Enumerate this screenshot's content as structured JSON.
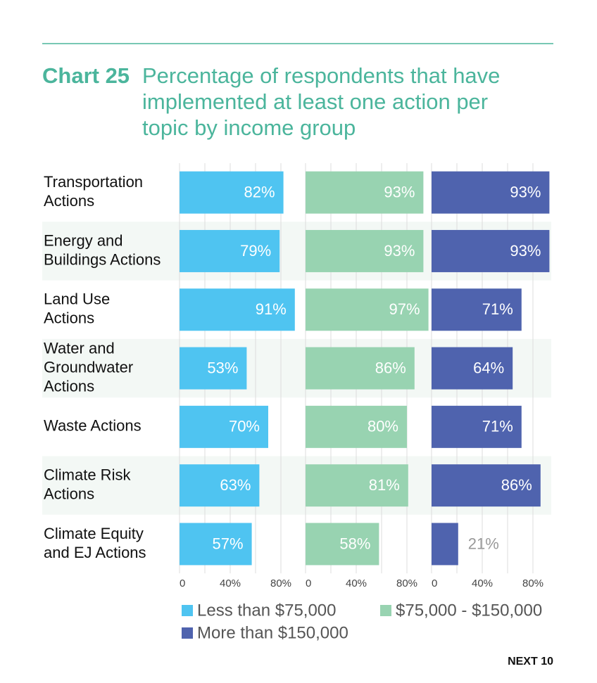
{
  "chart_data": {
    "type": "bar",
    "chart_label": "Chart 25",
    "title": [
      "Percentage of respondents that have",
      "implemented at least one action per",
      "topic by income group"
    ],
    "categories": [
      [
        "Transportation",
        "Actions"
      ],
      [
        "Energy and",
        "Buildings Actions"
      ],
      [
        "Land Use",
        "Actions"
      ],
      [
        "Water and",
        "Groundwater",
        "Actions"
      ],
      [
        "Waste Actions"
      ],
      [
        "Climate Risk",
        "Actions"
      ],
      [
        "Climate Equity",
        "and EJ Actions"
      ]
    ],
    "series": [
      {
        "name": "Less than $75,000",
        "color": "#4fc4f1",
        "values": [
          82,
          79,
          91,
          53,
          70,
          63,
          57
        ],
        "value_labels": [
          "82%",
          "79%",
          "91%",
          "53%",
          "70%",
          "63%",
          "57%"
        ]
      },
      {
        "name": "$75,000 - $150,000",
        "color": "#98d3b1",
        "values": [
          93,
          93,
          97,
          86,
          80,
          81,
          58
        ],
        "value_labels": [
          "93%",
          "93%",
          "97%",
          "86%",
          "80%",
          "81%",
          "58%"
        ]
      },
      {
        "name": "More than $150,000",
        "color": "#4f63ae",
        "values": [
          93,
          93,
          71,
          64,
          71,
          86,
          21
        ],
        "value_labels": [
          "93%",
          "93%",
          "71%",
          "64%",
          "71%",
          "86%",
          "21%"
        ]
      }
    ],
    "xlim": [
      0,
      100
    ],
    "xticks": [
      0,
      {
        "value": 40,
        "label": "40%"
      },
      {
        "value": 80,
        "label": "80%"
      }
    ],
    "minor_xticks": [
      20,
      60
    ],
    "grid": true
  },
  "footer": "NEXT 10"
}
